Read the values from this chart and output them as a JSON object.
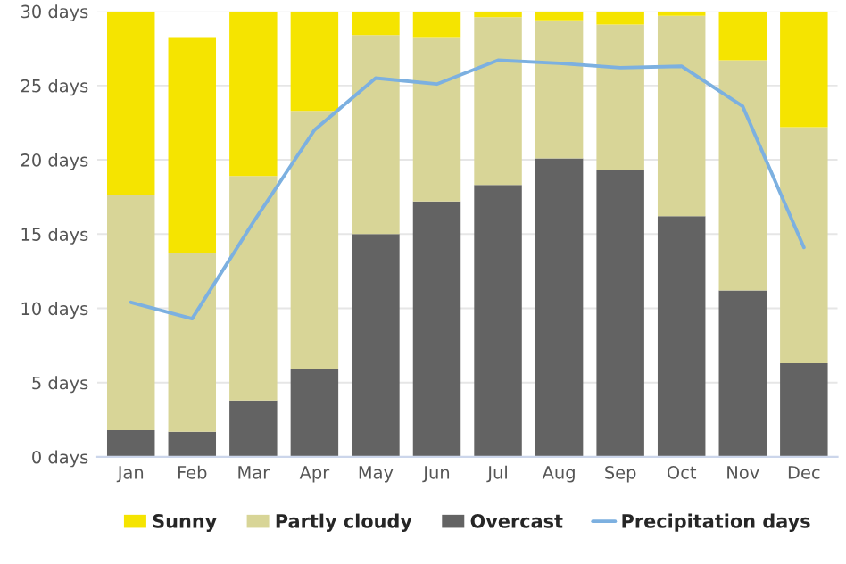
{
  "chart_data": {
    "type": "bar",
    "stacked": true,
    "categories": [
      "Jan",
      "Feb",
      "Mar",
      "Apr",
      "May",
      "Jun",
      "Jul",
      "Aug",
      "Sep",
      "Oct",
      "Nov",
      "Dec"
    ],
    "series": [
      {
        "name": "Overcast",
        "color": "#636363",
        "values": [
          1.8,
          1.7,
          3.8,
          5.9,
          15.0,
          17.2,
          18.3,
          20.1,
          19.3,
          16.2,
          11.2,
          6.3
        ]
      },
      {
        "name": "Partly cloudy",
        "color": "#d8d597",
        "values": [
          15.8,
          12.0,
          15.1,
          17.4,
          13.4,
          11.0,
          11.3,
          9.3,
          9.8,
          13.5,
          15.5,
          15.9
        ]
      },
      {
        "name": "Sunny",
        "color": "#f5e400",
        "values": [
          12.4,
          14.5,
          11.1,
          6.7,
          1.6,
          1.8,
          0.4,
          0.6,
          0.9,
          0.3,
          3.3,
          7.8
        ]
      },
      {
        "name": "Precipitation days",
        "type": "line",
        "color": "#7cb0e0",
        "values": [
          10.4,
          9.3,
          15.8,
          22.0,
          25.5,
          25.1,
          26.7,
          26.5,
          26.2,
          26.3,
          23.6,
          14.1
        ]
      }
    ],
    "ylim": [
      0,
      30
    ],
    "yticks": [
      {
        "value": 0,
        "label": "0 days"
      },
      {
        "value": 5,
        "label": "5 days"
      },
      {
        "value": 10,
        "label": "10 days"
      },
      {
        "value": 15,
        "label": "15 days"
      },
      {
        "value": 20,
        "label": "20 days"
      },
      {
        "value": 25,
        "label": "25 days"
      },
      {
        "value": 30,
        "label": "30 days"
      }
    ],
    "grid": "y",
    "legend": "bottom",
    "marker": "none",
    "line_style": "solid"
  }
}
